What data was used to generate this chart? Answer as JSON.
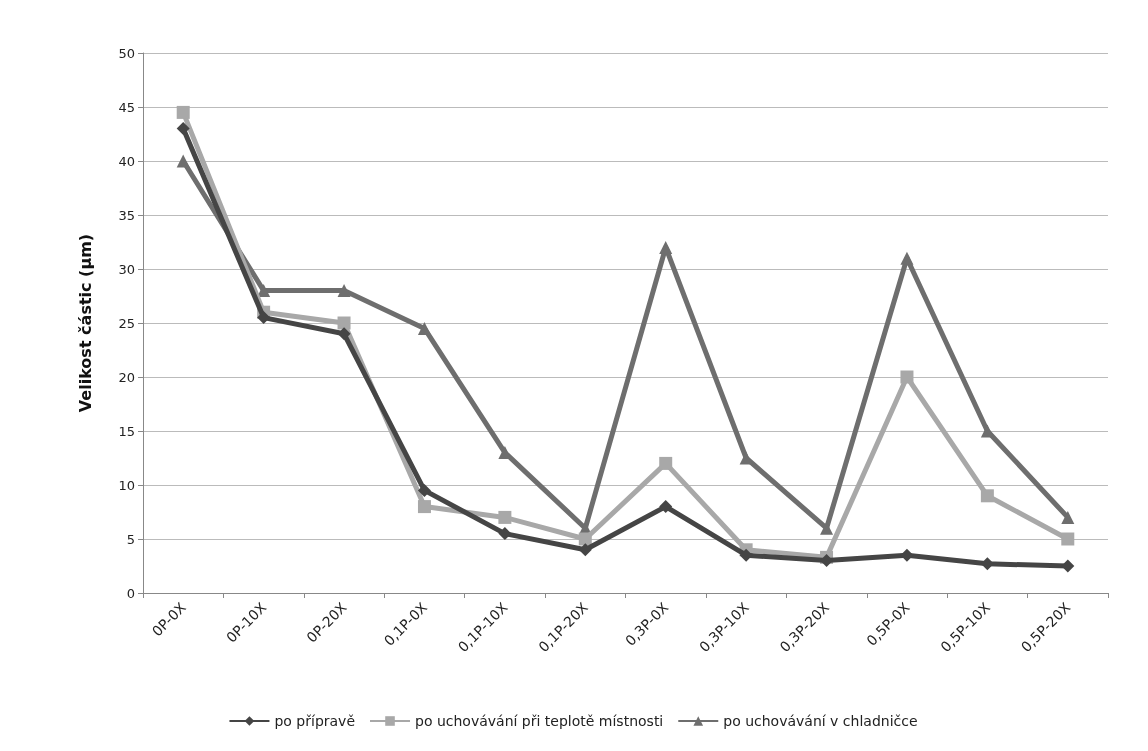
{
  "chart_data": {
    "type": "line",
    "ylabel": "Velikost částic (µm)",
    "categories": [
      "0P-0X",
      "0P-10X",
      "0P-20X",
      "0,1P-0X",
      "0,1P-10X",
      "0,1P-20X",
      "0,3P-0X",
      "0,3P-10X",
      "0,3P-20X",
      "0,5P-0X",
      "0,5P-10X",
      "0,5P-20X"
    ],
    "ylim": [
      0,
      50
    ],
    "yticks": [
      0,
      5,
      10,
      15,
      20,
      25,
      30,
      35,
      40,
      45,
      50
    ],
    "grid": "y",
    "legend": "bottom",
    "series": [
      {
        "name": "po přípravě",
        "color": "#454545",
        "marker": "diamond",
        "values": [
          43,
          25.5,
          24,
          9.5,
          5.5,
          4,
          8,
          3.5,
          3,
          3.5,
          2.7,
          2.5
        ]
      },
      {
        "name": "po uchovávání při teplotě místnosti",
        "color": "#a8a8a8",
        "marker": "square",
        "values": [
          44.5,
          26,
          25,
          8,
          7,
          5,
          12,
          4,
          3.3,
          20,
          9,
          5
        ]
      },
      {
        "name": "po uchovávání v chladničce",
        "color": "#6e6e6e",
        "marker": "triangle",
        "values": [
          40,
          28,
          28,
          24.5,
          13,
          6,
          32,
          12.5,
          6,
          31,
          15,
          7
        ]
      }
    ]
  }
}
